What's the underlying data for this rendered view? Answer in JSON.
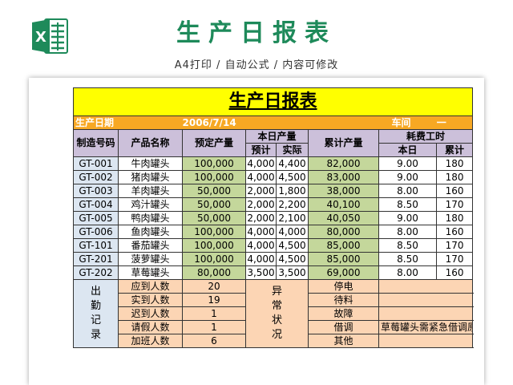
{
  "header": {
    "title": "生产日报表",
    "subtitle": "A4打印 / 自动公式 / 内容可修改",
    "logo_icon": "excel-icon"
  },
  "sheet": {
    "title": "生产日报表",
    "date_label": "生产日期",
    "date_value": "2006/7/14",
    "workshop_label": "车间",
    "workshop_value": "一",
    "col_headers": {
      "code": "制造号码",
      "name": "产品名称",
      "planned": "预定产量",
      "today": "本日产量",
      "today_plan": "预计",
      "today_actual": "实际",
      "cumulative": "累计产量",
      "hours": "耗费工时",
      "hours_today": "本日",
      "hours_total": "累计"
    },
    "rows": [
      {
        "code": "GT-001",
        "name": "牛肉罐头",
        "planned": "100,000",
        "plan": "4,000",
        "actual": "4,400",
        "cum": "82,000",
        "h_today": "9.00",
        "h_total": "180"
      },
      {
        "code": "GT-002",
        "name": "猪肉罐头",
        "planned": "100,000",
        "plan": "4,000",
        "actual": "4,500",
        "cum": "83,000",
        "h_today": "9.00",
        "h_total": "180"
      },
      {
        "code": "GT-003",
        "name": "羊肉罐头",
        "planned": "50,000",
        "plan": "2,000",
        "actual": "1,800",
        "cum": "38,000",
        "h_today": "8.00",
        "h_total": "160"
      },
      {
        "code": "GT-004",
        "name": "鸡汁罐头",
        "planned": "50,000",
        "plan": "2,000",
        "actual": "2,200",
        "cum": "40,100",
        "h_today": "8.50",
        "h_total": "170"
      },
      {
        "code": "GT-005",
        "name": "鸭肉罐头",
        "planned": "50,000",
        "plan": "2,000",
        "actual": "2,100",
        "cum": "40,050",
        "h_today": "9.00",
        "h_total": "180"
      },
      {
        "code": "GT-006",
        "name": "鱼肉罐头",
        "planned": "100,000",
        "plan": "4,000",
        "actual": "4,000",
        "cum": "80,000",
        "h_today": "8.00",
        "h_total": "160"
      },
      {
        "code": "GT-101",
        "name": "番茄罐头",
        "planned": "100,000",
        "plan": "4,000",
        "actual": "4,500",
        "cum": "85,000",
        "h_today": "8.50",
        "h_total": "170"
      },
      {
        "code": "GT-201",
        "name": "菠萝罐头",
        "planned": "100,000",
        "plan": "4,000",
        "actual": "4,500",
        "cum": "85,000",
        "h_today": "8.50",
        "h_total": "170"
      },
      {
        "code": "GT-202",
        "name": "草莓罐头",
        "planned": "80,000",
        "plan": "3,500",
        "actual": "3,500",
        "cum": "69,000",
        "h_today": "8.00",
        "h_total": "160"
      }
    ],
    "attendance": {
      "label": "出勤记录",
      "rows": [
        {
          "label": "应到人数",
          "value": "20"
        },
        {
          "label": "实到人数",
          "value": "19"
        },
        {
          "label": "迟到人数",
          "value": "1"
        },
        {
          "label": "请假人数",
          "value": "1"
        },
        {
          "label": "加班人数",
          "value": "6"
        }
      ]
    },
    "abnormal": {
      "label": "异常状况",
      "rows": [
        {
          "label": "停电",
          "value": ""
        },
        {
          "label": "待料",
          "value": ""
        },
        {
          "label": "故障",
          "value": ""
        },
        {
          "label": "借调",
          "value": "草莓罐头需紧急借调原料"
        },
        {
          "label": "其他",
          "value": ""
        }
      ]
    }
  },
  "colors": {
    "title_green": "#1e8a5a",
    "title_bar": "#ffff00",
    "date_bar": "#f7a823",
    "header": "#ccc0da",
    "code_col": "#dce6f1",
    "qty_col": "#c4d79b",
    "footer": "#fcd5b4"
  }
}
